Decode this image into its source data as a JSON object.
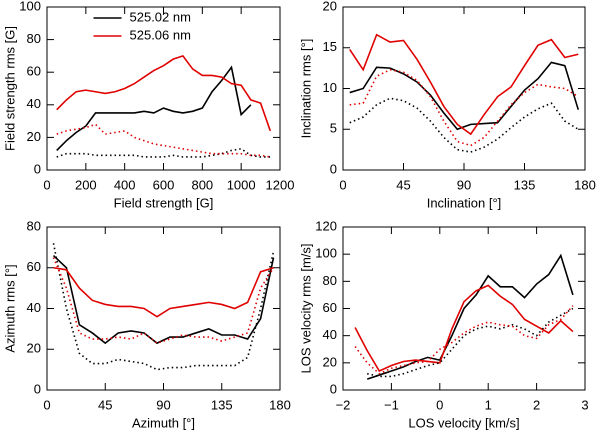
{
  "chart_data": [
    {
      "type": "line",
      "xlabel": "Field strength [G]",
      "ylabel": "Field strength rms [G]",
      "xlim": [
        0,
        1200
      ],
      "ylim": [
        0,
        100
      ],
      "xticks": [
        0,
        200,
        400,
        600,
        800,
        1000,
        1200
      ],
      "yticks": [
        0,
        20,
        40,
        60,
        80,
        100
      ],
      "legend": "top",
      "x": [
        50,
        100,
        150,
        200,
        250,
        300,
        350,
        400,
        450,
        500,
        550,
        600,
        650,
        700,
        750,
        800,
        850,
        900,
        950,
        1000,
        1050,
        1100,
        1150
      ],
      "series": [
        {
          "name": "525.02 nm",
          "color": "#000000",
          "dash": false,
          "values": [
            12,
            18,
            23,
            27,
            35,
            35,
            35,
            35,
            35,
            36,
            35,
            38,
            36,
            35,
            36,
            38,
            48,
            55,
            63,
            34,
            40,
            null,
            null
          ]
        },
        {
          "name": "525.06 nm",
          "color": "#e00000",
          "dash": false,
          "values": [
            37,
            43,
            48,
            49,
            48,
            47,
            48,
            50,
            53,
            57,
            61,
            64,
            68,
            70,
            62,
            58,
            58,
            57,
            53,
            52,
            43,
            41,
            24
          ]
        },
        {
          "color": "#000000",
          "dash": true,
          "values": [
            8,
            10,
            10,
            10,
            9,
            9,
            9,
            9,
            9,
            8,
            8,
            8,
            9,
            8,
            8,
            8,
            9,
            10,
            12,
            13,
            9,
            8,
            8
          ]
        },
        {
          "color": "#e00000",
          "dash": true,
          "values": [
            22,
            24,
            25,
            26,
            28,
            22,
            23,
            24,
            20,
            18,
            16,
            15,
            14,
            13,
            12,
            11,
            10,
            10,
            10,
            10,
            9,
            9,
            8
          ]
        }
      ]
    },
    {
      "type": "line",
      "xlabel": "Inclination [°]",
      "ylabel": "Inclination rms [°]",
      "xlim": [
        0,
        180
      ],
      "ylim": [
        0,
        20
      ],
      "xticks": [
        0,
        45,
        90,
        135,
        180
      ],
      "yticks": [
        0,
        5,
        10,
        15,
        20
      ],
      "x": [
        5,
        15,
        25,
        35,
        45,
        55,
        65,
        75,
        85,
        95,
        105,
        115,
        125,
        135,
        145,
        155,
        165,
        175
      ],
      "series": [
        {
          "color": "#000000",
          "dash": false,
          "values": [
            9.5,
            10,
            12.6,
            12.5,
            11.8,
            10.8,
            9.2,
            7,
            5,
            5.6,
            5.7,
            5.8,
            7.8,
            9.8,
            11.2,
            13.2,
            12.8,
            7.4
          ]
        },
        {
          "color": "#e00000",
          "dash": false,
          "values": [
            14.8,
            12.3,
            16.6,
            15.7,
            15.9,
            13.6,
            10.8,
            7.8,
            5.6,
            4.4,
            6.8,
            9,
            10.2,
            12.8,
            15.3,
            16,
            13.8,
            14.2
          ]
        },
        {
          "color": "#000000",
          "dash": true,
          "values": [
            5.8,
            6.5,
            8,
            8.8,
            8.5,
            7.6,
            6,
            4,
            2.5,
            2.2,
            2.8,
            3.8,
            5.2,
            6.5,
            7.5,
            8.2,
            6,
            5
          ]
        },
        {
          "color": "#e00000",
          "dash": true,
          "values": [
            8,
            8.2,
            11.5,
            12.3,
            12,
            11,
            9,
            6,
            3.5,
            3,
            4,
            6,
            8,
            9.5,
            10.5,
            10.2,
            10,
            9
          ]
        }
      ]
    },
    {
      "type": "line",
      "xlabel": "Azimuth [°]",
      "ylabel": "Azimuth rms [°]",
      "xlim": [
        0,
        180
      ],
      "ylim": [
        0,
        80
      ],
      "xticks": [
        0,
        45,
        90,
        135,
        180
      ],
      "yticks": [
        0,
        20,
        40,
        60,
        80
      ],
      "x": [
        5,
        15,
        25,
        35,
        45,
        55,
        65,
        75,
        85,
        95,
        105,
        115,
        125,
        135,
        145,
        155,
        165,
        175
      ],
      "series": [
        {
          "color": "#000000",
          "dash": false,
          "values": [
            66,
            60,
            32,
            28,
            23,
            28,
            29,
            28,
            23,
            26,
            26,
            28,
            30,
            27,
            27,
            25,
            35,
            65
          ]
        },
        {
          "color": "#e00000",
          "dash": false,
          "values": [
            60,
            59,
            50,
            44,
            42,
            41,
            41,
            40,
            36,
            40,
            41,
            42,
            43,
            42,
            40,
            43,
            58,
            60
          ]
        },
        {
          "color": "#000000",
          "dash": true,
          "values": [
            72,
            40,
            18,
            13,
            13,
            15,
            14,
            13,
            10,
            11,
            11,
            12,
            12,
            12,
            12,
            16,
            40,
            68
          ]
        },
        {
          "color": "#e00000",
          "dash": true,
          "values": [
            65,
            50,
            28,
            25,
            25,
            26,
            25,
            28,
            23,
            25,
            27,
            26,
            26,
            24,
            26,
            28,
            50,
            60
          ]
        }
      ]
    },
    {
      "type": "line",
      "xlabel": "LOS velocity [km/s]",
      "ylabel": "LOS velocity rms [m/s]",
      "xlim": [
        -2,
        3
      ],
      "ylim": [
        0,
        120
      ],
      "xticks": [
        {
          "value": -2,
          "label": "−2"
        },
        {
          "value": -1,
          "label": "−1"
        },
        0,
        1,
        2,
        3
      ],
      "yticks": [
        0,
        20,
        40,
        60,
        80,
        100,
        120
      ],
      "x": [
        -1.75,
        -1.5,
        -1.25,
        -1,
        -0.75,
        -0.5,
        -0.25,
        0,
        0.25,
        0.5,
        0.75,
        1,
        1.25,
        1.5,
        1.75,
        2,
        2.25,
        2.5,
        2.75
      ],
      "series": [
        {
          "color": "#000000",
          "dash": false,
          "values": [
            null,
            8,
            11,
            14,
            17,
            21,
            24,
            22,
            40,
            60,
            70,
            84,
            76,
            76,
            68,
            78,
            85,
            99,
            70
          ]
        },
        {
          "color": "#e00000",
          "dash": false,
          "values": [
            46,
            29,
            14,
            18,
            21,
            22,
            21,
            20,
            45,
            65,
            73,
            77,
            69,
            63,
            52,
            47,
            42,
            51,
            43
          ]
        },
        {
          "color": "#000000",
          "dash": true,
          "values": [
            null,
            12,
            10,
            10,
            12,
            15,
            18,
            20,
            30,
            40,
            45,
            47,
            45,
            48,
            45,
            40,
            50,
            55,
            60
          ]
        },
        {
          "color": "#e00000",
          "dash": true,
          "values": [
            32,
            20,
            12,
            16,
            18,
            20,
            21,
            30,
            35,
            42,
            47,
            50,
            48,
            47,
            40,
            38,
            48,
            52,
            62
          ]
        }
      ]
    }
  ]
}
